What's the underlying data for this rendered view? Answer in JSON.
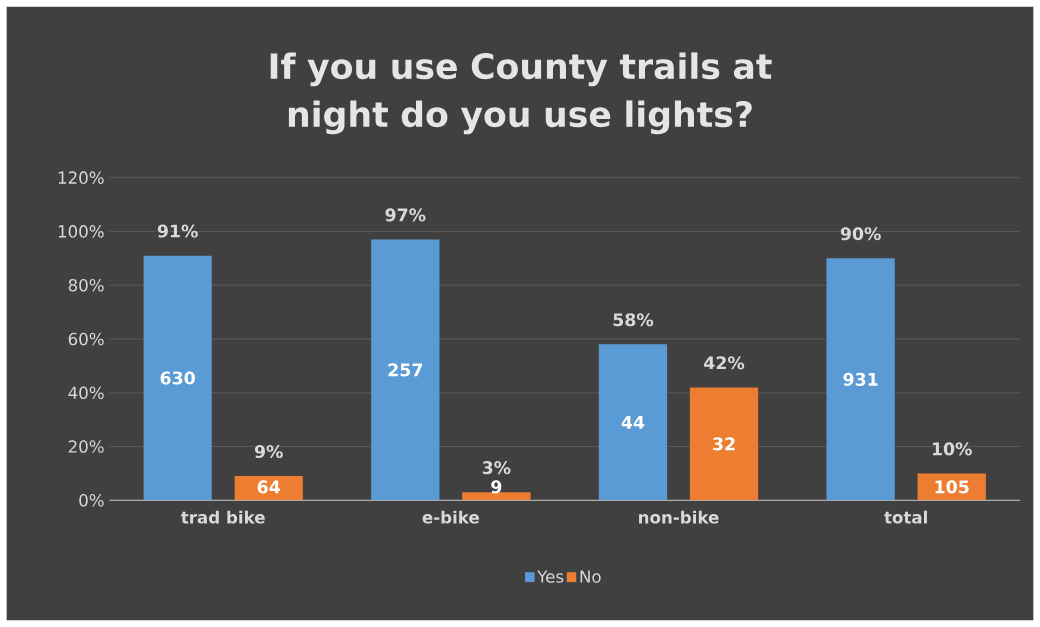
{
  "chart_data": {
    "type": "bar",
    "title": "If you use County trails at night do you use lights?",
    "categories": [
      "trad bike",
      "e-bike",
      "non-bike",
      "total"
    ],
    "series": [
      {
        "name": "Yes",
        "color": "#5b9bd5",
        "values": [
          91,
          97,
          58,
          90
        ],
        "value_labels": [
          "91%",
          "97%",
          "58%",
          "90%"
        ]
      },
      {
        "name": "No",
        "color": "#ed7d31",
        "values": [
          9,
          3,
          42,
          10
        ],
        "value_labels": [
          "9%",
          "3%",
          "42%",
          "10%"
        ]
      }
    ],
    "annotations": [
      "630",
      "64",
      "257",
      "9",
      "44",
      "32",
      "931",
      "105"
    ],
    "ylim": [
      0,
      120
    ],
    "yticks": [
      {
        "value": 0,
        "label": "0%"
      },
      {
        "value": 20,
        "label": "20%"
      },
      {
        "value": 40,
        "label": "40%"
      },
      {
        "value": 60,
        "label": "60%"
      },
      {
        "value": 80,
        "label": "80%"
      },
      {
        "value": 100,
        "label": "100%"
      },
      {
        "value": 120,
        "label": "120%"
      }
    ],
    "grid": "y",
    "legend": "bottom"
  }
}
